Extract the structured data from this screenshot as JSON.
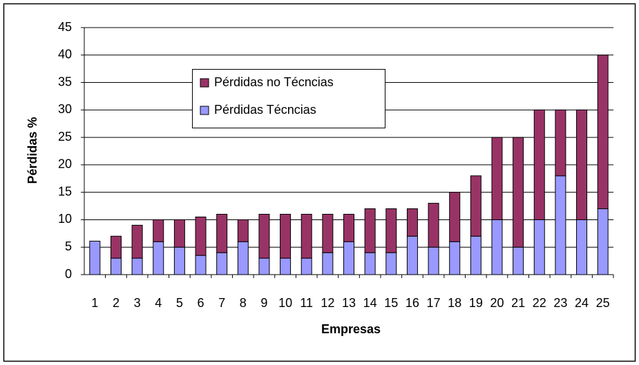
{
  "chart_data": {
    "type": "stacked_bar",
    "x_label": "Empresas",
    "y_label": "Pérdidas %",
    "categories": [
      "1",
      "2",
      "3",
      "4",
      "5",
      "6",
      "7",
      "8",
      "9",
      "10",
      "11",
      "12",
      "13",
      "14",
      "15",
      "16",
      "17",
      "18",
      "19",
      "20",
      "21",
      "22",
      "23",
      "24",
      "25"
    ],
    "series": [
      {
        "name": "Pérdidas Técncias",
        "color": "#9999ff",
        "values": [
          6.1,
          3,
          3,
          6,
          5,
          3.5,
          4,
          6,
          3,
          3,
          3,
          4,
          6,
          4,
          4,
          7,
          5,
          6,
          7,
          10,
          5,
          10,
          18,
          10,
          12
        ]
      },
      {
        "name": "Pérdidas no Técncias",
        "color": "#993366",
        "values": [
          0,
          4,
          6,
          4,
          5,
          7,
          7,
          4,
          8,
          8,
          8,
          7,
          5,
          8,
          8,
          5,
          8,
          9,
          11,
          15,
          20,
          20,
          12,
          20,
          28
        ]
      }
    ],
    "ylim": [
      0,
      45
    ],
    "yticks": [
      0,
      5,
      10,
      15,
      20,
      25,
      30,
      35,
      40,
      45
    ],
    "grid": true
  }
}
